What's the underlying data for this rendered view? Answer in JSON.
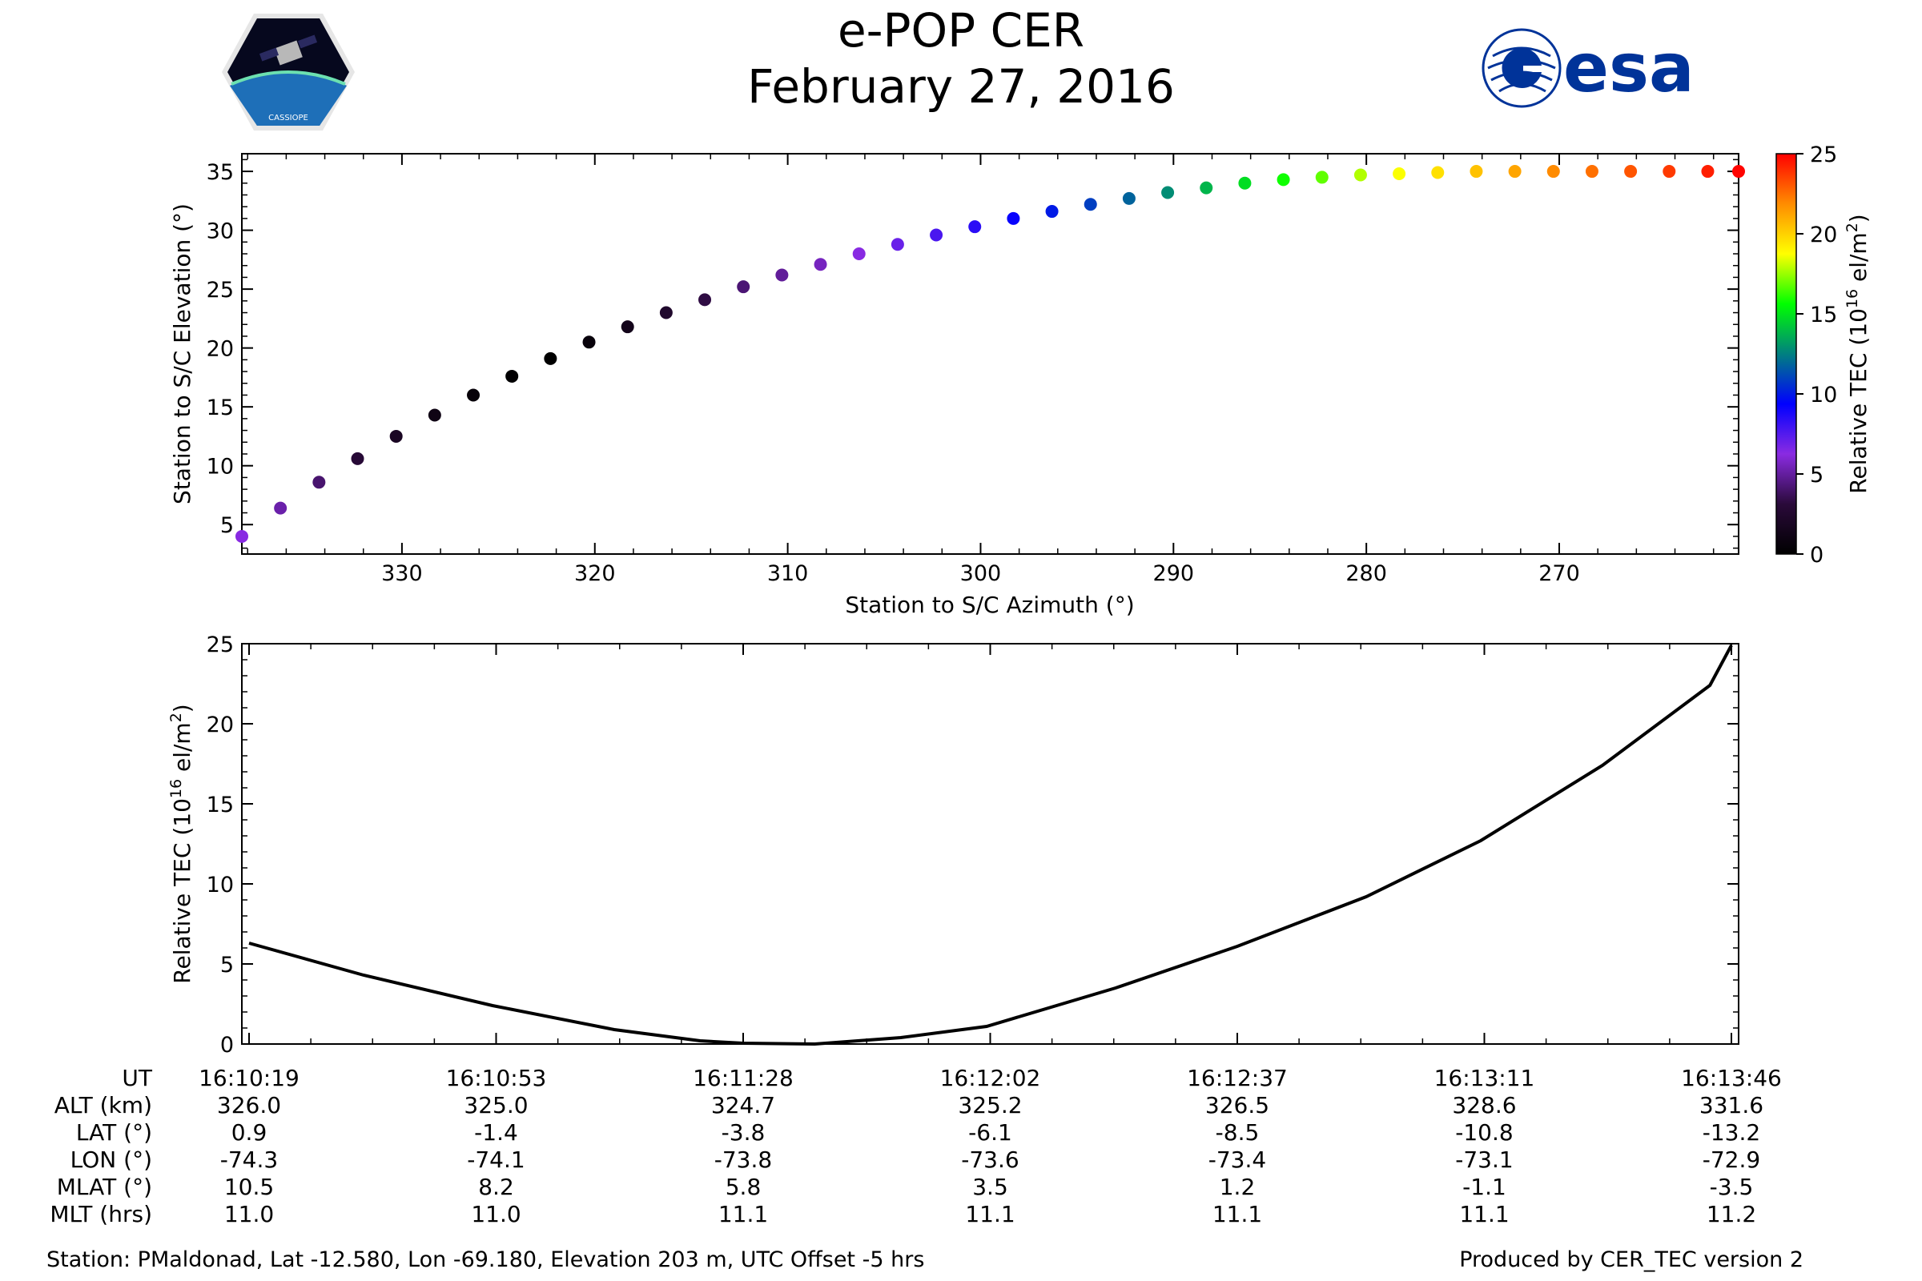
{
  "header": {
    "title": "e-POP CER",
    "date": "February 27, 2016"
  },
  "logos": {
    "left_text": "CASSIOPE",
    "right_text": "esa",
    "esa_color": "#003399"
  },
  "colormap": [
    "#000000",
    "#2a0a3a",
    "#8a2be2",
    "#0000ff",
    "#008080",
    "#00ff00",
    "#ffff00",
    "#ff8c00",
    "#ff0000"
  ],
  "chart_data": [
    {
      "type": "scatter",
      "xlabel": "Station to S/C Azimuth (°)",
      "ylabel": "Station to S/C Elevation (°)",
      "xlim": [
        338.3,
        260.7
      ],
      "ylim": [
        2.5,
        36.5
      ],
      "xticks": [
        330,
        320,
        310,
        300,
        290,
        280,
        270
      ],
      "yticks": [
        5,
        10,
        15,
        20,
        25,
        30,
        35
      ],
      "x_tick_labels": [
        "330",
        "320",
        "310",
        "300",
        "290",
        "280",
        "270"
      ],
      "y_tick_labels": [
        "5",
        "10",
        "15",
        "20",
        "25",
        "30",
        "35"
      ],
      "colorbar": {
        "label": "Relative TEC (10¹⁶ el/m²)",
        "label_prefix": "Relative TEC (10",
        "label_exp1": "16",
        "label_mid": " el/m",
        "label_exp2": "2",
        "label_suffix": ")",
        "range": [
          0,
          25
        ],
        "ticks": [
          0,
          5,
          10,
          15,
          20,
          25
        ],
        "tick_labels": [
          "0",
          "5",
          "10",
          "15",
          "20",
          "25"
        ]
      },
      "x": [
        338.3,
        336.3,
        334.3,
        332.3,
        330.3,
        328.3,
        326.3,
        324.3,
        322.3,
        320.3,
        318.3,
        316.3,
        314.3,
        312.3,
        310.3,
        308.3,
        306.3,
        304.3,
        302.3,
        300.3,
        298.3,
        296.3,
        294.3,
        292.3,
        290.3,
        288.3,
        286.3,
        284.3,
        282.3,
        280.3,
        278.3,
        276.3,
        274.3,
        272.3,
        270.3,
        268.3,
        266.3,
        264.3,
        262.3,
        260.7
      ],
      "y": [
        4.0,
        6.4,
        8.6,
        10.6,
        12.5,
        14.3,
        16.0,
        17.6,
        19.1,
        20.5,
        21.8,
        23.0,
        24.1,
        25.2,
        26.2,
        27.1,
        28.0,
        28.8,
        29.6,
        30.3,
        31.0,
        31.6,
        32.2,
        32.7,
        33.2,
        33.6,
        34.0,
        34.3,
        34.5,
        34.7,
        34.8,
        34.9,
        35.0,
        35.0,
        35.0,
        35.0,
        35.0,
        35.0,
        35.0,
        35.0
      ],
      "tec": [
        6.3,
        5.2,
        4.1,
        2.9,
        1.9,
        1.1,
        0.5,
        0.1,
        0.0,
        0.6,
        1.4,
        2.4,
        3.3,
        4.2,
        4.9,
        5.6,
        6.3,
        7.0,
        7.7,
        8.4,
        9.2,
        10.0,
        10.9,
        11.8,
        12.8,
        13.8,
        14.8,
        15.8,
        16.8,
        17.8,
        18.7,
        19.6,
        20.4,
        21.2,
        21.9,
        22.5,
        23.1,
        23.7,
        24.3,
        24.9
      ]
    },
    {
      "type": "line",
      "xlabel": "UT",
      "ylabel": "Relative TEC (10¹⁶ el/m²)",
      "ylabel_prefix": "Relative TEC (10",
      "ylabel_exp1": "16",
      "ylabel_mid": " el/m",
      "ylabel_exp2": "2",
      "ylabel_suffix": ")",
      "ylim": [
        0,
        25
      ],
      "yticks": [
        0,
        5,
        10,
        15,
        20,
        25
      ],
      "y_tick_labels": [
        "0",
        "5",
        "10",
        "15",
        "20",
        "25"
      ],
      "x": [
        "16:10:19",
        "16:10:35",
        "16:10:53",
        "16:11:10",
        "16:11:22",
        "16:11:28",
        "16:11:38",
        "16:11:50",
        "16:12:02",
        "16:12:20",
        "16:12:37",
        "16:12:55",
        "16:13:11",
        "16:13:28",
        "16:13:43",
        "16:13:46"
      ],
      "values": [
        6.3,
        4.3,
        2.4,
        0.9,
        0.2,
        0.05,
        0.0,
        0.4,
        1.1,
        3.5,
        6.1,
        9.2,
        12.7,
        17.4,
        22.4,
        24.9
      ]
    }
  ],
  "table": {
    "row_labels": [
      "UT",
      "ALT (km)",
      "LAT (°)",
      "LON (°)",
      "MLAT (°)",
      "MLT (hrs)"
    ],
    "columns": [
      [
        "16:10:19",
        "326.0",
        "0.9",
        "-74.3",
        "10.5",
        "11.0"
      ],
      [
        "16:10:53",
        "325.0",
        "-1.4",
        "-74.1",
        "8.2",
        "11.0"
      ],
      [
        "16:11:28",
        "324.7",
        "-3.8",
        "-73.8",
        "5.8",
        "11.1"
      ],
      [
        "16:12:02",
        "325.2",
        "-6.1",
        "-73.6",
        "3.5",
        "11.1"
      ],
      [
        "16:12:37",
        "326.5",
        "-8.5",
        "-73.4",
        "1.2",
        "11.1"
      ],
      [
        "16:13:11",
        "328.6",
        "-10.8",
        "-73.1",
        "-1.1",
        "11.1"
      ],
      [
        "16:13:46",
        "331.6",
        "-13.2",
        "-72.9",
        "-3.5",
        "11.2"
      ]
    ]
  },
  "footer": {
    "station": "Station: PMaldonad, Lat -12.580, Lon -69.180, Elevation 203 m, UTC Offset -5 hrs",
    "produced": "Produced by CER_TEC version 2"
  }
}
